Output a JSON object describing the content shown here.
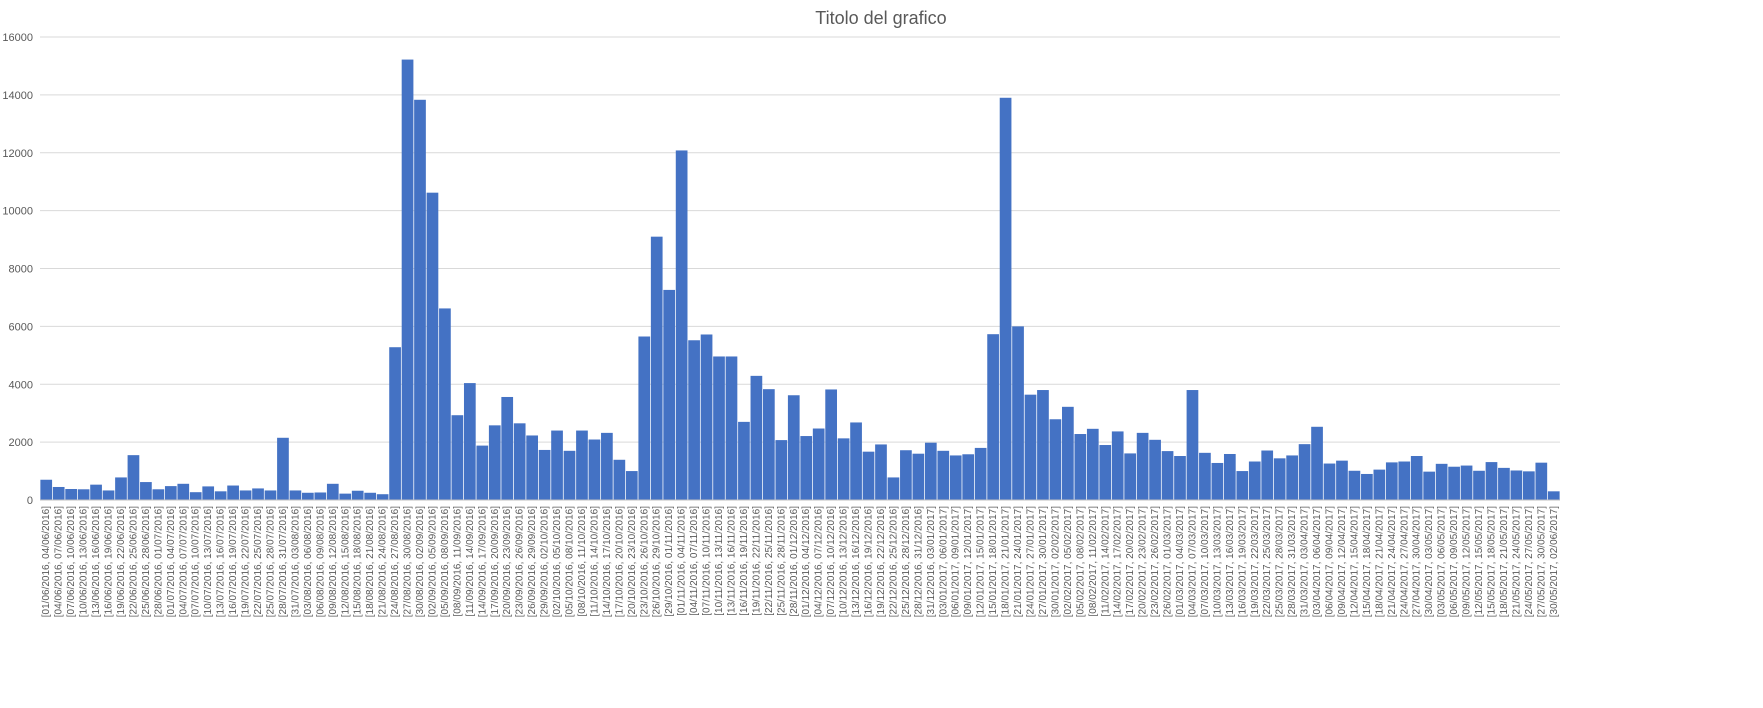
{
  "chart_data": {
    "type": "bar",
    "title": "Titolo del grafico",
    "xlabel": "",
    "ylabel": "",
    "ylim": [
      0,
      16000
    ],
    "yticks": [
      0,
      2000,
      4000,
      6000,
      8000,
      10000,
      12000,
      14000,
      16000
    ],
    "grid": true,
    "legend": "none",
    "bar_color": "#4472c4",
    "categories": [
      "[01/06/2016, 04/06/2016]",
      "[04/06/2016, 07/06/2016]",
      "[07/06/2016, 10/06/2016]",
      "[10/06/2016, 13/06/2016]",
      "[13/06/2016, 16/06/2016]",
      "[16/06/2016, 19/06/2016]",
      "[19/06/2016, 22/06/2016]",
      "[22/06/2016, 25/06/2016]",
      "[25/06/2016, 28/06/2016]",
      "[28/06/2016, 01/07/2016]",
      "[01/07/2016, 04/07/2016]",
      "[04/07/2016, 07/07/2016]",
      "[07/07/2016, 10/07/2016]",
      "[10/07/2016, 13/07/2016]",
      "[13/07/2016, 16/07/2016]",
      "[16/07/2016, 19/07/2016]",
      "[19/07/2016, 22/07/2016]",
      "[22/07/2016, 25/07/2016]",
      "[25/07/2016, 28/07/2016]",
      "[28/07/2016, 31/07/2016]",
      "[31/07/2016, 03/08/2016]",
      "[03/08/2016, 06/08/2016]",
      "[06/08/2016, 09/08/2016]",
      "[09/08/2016, 12/08/2016]",
      "[12/08/2016, 15/08/2016]",
      "[15/08/2016, 18/08/2016]",
      "[18/08/2016, 21/08/2016]",
      "[21/08/2016, 24/08/2016]",
      "[24/08/2016, 27/08/2016]",
      "[27/08/2016, 30/08/2016]",
      "[30/08/2016, 02/09/2016]",
      "[02/09/2016, 05/09/2016]",
      "[05/09/2016, 08/09/2016]",
      "[08/09/2016, 11/09/2016]",
      "[11/09/2016, 14/09/2016]",
      "[14/09/2016, 17/09/2016]",
      "[17/09/2016, 20/09/2016]",
      "[20/09/2016, 23/09/2016]",
      "[23/09/2016, 26/09/2016]",
      "[26/09/2016, 29/09/2016]",
      "[29/09/2016, 02/10/2016]",
      "[02/10/2016, 05/10/2016]",
      "[05/10/2016, 08/10/2016]",
      "[08/10/2016, 11/10/2016]",
      "[11/10/2016, 14/10/2016]",
      "[14/10/2016, 17/10/2016]",
      "[17/10/2016, 20/10/2016]",
      "[20/10/2016, 23/10/2016]",
      "[23/10/2016, 26/10/2016]",
      "[26/10/2016, 29/10/2016]",
      "[29/10/2016, 01/11/2016]",
      "[01/11/2016, 04/11/2016]",
      "[04/11/2016, 07/11/2016]",
      "[07/11/2016, 10/11/2016]",
      "[10/11/2016, 13/11/2016]",
      "[13/11/2016, 16/11/2016]",
      "[16/11/2016, 19/11/2016]",
      "[19/11/2016, 22/11/2016]",
      "[22/11/2016, 25/11/2016]",
      "[25/11/2016, 28/11/2016]",
      "[28/11/2016, 01/12/2016]",
      "[01/12/2016, 04/12/2016]",
      "[04/12/2016, 07/12/2016]",
      "[07/12/2016, 10/12/2016]",
      "[10/12/2016, 13/12/2016]",
      "[13/12/2016, 16/12/2016]",
      "[16/12/2016, 19/12/2016]",
      "[19/12/2016, 22/12/2016]",
      "[22/12/2016, 25/12/2016]",
      "[25/12/2016, 28/12/2016]",
      "[28/12/2016, 31/12/2016]",
      "[31/12/2016, 03/01/2017]",
      "[03/01/2017, 06/01/2017]",
      "[06/01/2017, 09/01/2017]",
      "[09/01/2017, 12/01/2017]",
      "[12/01/2017, 15/01/2017]",
      "[15/01/2017, 18/01/2017]",
      "[18/01/2017, 21/01/2017]",
      "[21/01/2017, 24/01/2017]",
      "[24/01/2017, 27/01/2017]",
      "[27/01/2017, 30/01/2017]",
      "[30/01/2017, 02/02/2017]",
      "[02/02/2017, 05/02/2017]",
      "[05/02/2017, 08/02/2017]",
      "[08/02/2017, 11/02/2017]",
      "[11/02/2017, 14/02/2017]",
      "[14/02/2017, 17/02/2017]",
      "[17/02/2017, 20/02/2017]",
      "[20/02/2017, 23/02/2017]",
      "[23/02/2017, 26/02/2017]",
      "[26/02/2017, 01/03/2017]",
      "[01/03/2017, 04/03/2017]",
      "[04/03/2017, 07/03/2017]",
      "[07/03/2017, 10/03/2017]",
      "[10/03/2017, 13/03/2017]",
      "[13/03/2017, 16/03/2017]",
      "[16/03/2017, 19/03/2017]",
      "[19/03/2017, 22/03/2017]",
      "[22/03/2017, 25/03/2017]",
      "[25/03/2017, 28/03/2017]",
      "[28/03/2017, 31/03/2017]",
      "[31/03/2017, 03/04/2017]",
      "[03/04/2017, 06/04/2017]",
      "[06/04/2017, 09/04/2017]",
      "[09/04/2017, 12/04/2017]",
      "[12/04/2017, 15/04/2017]",
      "[15/04/2017, 18/04/2017]",
      "[18/04/2017, 21/04/2017]",
      "[21/04/2017, 24/04/2017]",
      "[24/04/2017, 27/04/2017]",
      "[27/04/2017, 30/04/2017]",
      "[30/04/2017, 03/05/2017]",
      "[03/05/2017, 06/05/2017]",
      "[06/05/2017, 09/05/2017]",
      "[09/05/2017, 12/05/2017]",
      "[12/05/2017, 15/05/2017]",
      "[15/05/2017, 18/05/2017]",
      "[18/05/2017, 21/05/2017]",
      "[21/05/2017, 24/05/2017]",
      "[24/05/2017, 27/05/2017]",
      "[27/05/2017, 30/05/2017]",
      "[30/05/2017, 02/06/2017]"
    ],
    "values": [
      700,
      450,
      380,
      370,
      530,
      330,
      780,
      1550,
      620,
      370,
      480,
      560,
      270,
      470,
      300,
      500,
      330,
      400,
      330,
      2150,
      330,
      250,
      260,
      560,
      220,
      320,
      250,
      200,
      5280,
      15220,
      13830,
      10620,
      6620,
      2930,
      4040,
      1880,
      2580,
      3560,
      2650,
      2230,
      1730,
      2400,
      1700,
      2400,
      2090,
      2320,
      1390,
      1000,
      5650,
      9100,
      7260,
      12080,
      5520,
      5720,
      4960,
      4960,
      2700,
      4290,
      3830,
      2070,
      3620,
      2210,
      2470,
      3820,
      2130,
      2680,
      1670,
      1920,
      780,
      1720,
      1600,
      1980,
      1700,
      1540,
      1580,
      1800,
      5730,
      13900,
      6000,
      3640,
      3800,
      2790,
      3220,
      2280,
      2460,
      1900,
      2370,
      1610,
      2320,
      2080,
      1690,
      1520,
      3800,
      1630,
      1280,
      1590,
      1000,
      1330,
      1710,
      1440,
      1540,
      1930,
      2530,
      1260,
      1360,
      1010,
      900,
      1050,
      1300,
      1330,
      1520,
      980,
      1250,
      1150,
      1190,
      1010,
      1310,
      1110,
      1020,
      990,
      1290,
      300
    ]
  }
}
